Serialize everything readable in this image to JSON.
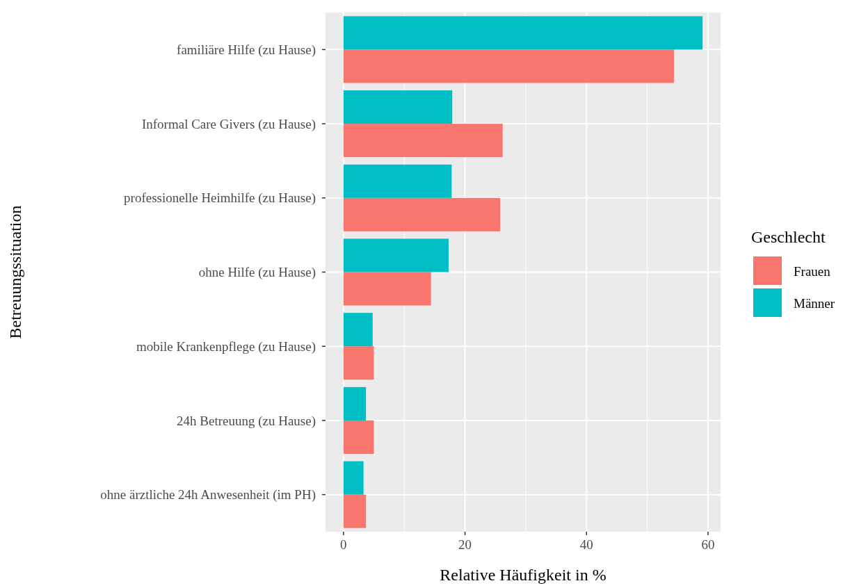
{
  "chart_data": {
    "type": "bar",
    "orientation": "horizontal",
    "xlabel": "Relative Häufigkeit in %",
    "ylabel": "Betreuungssituation",
    "legend_title": "Geschlecht",
    "legend": "right",
    "grid": true,
    "categories": [
      "familiäre Hilfe (zu Hause)",
      "Informal Care Givers (zu Hause)",
      "professionelle Heimhilfe (zu Hause)",
      "ohne Hilfe (zu Hause)",
      "mobile Krankenpflege (zu Hause)",
      "24h Betreuung (zu Hause)",
      "ohne ärztliche 24h Anwesenheit (im PH)"
    ],
    "series": [
      {
        "name": "Frauen",
        "color": "#f8766d",
        "values": [
          54.4,
          26.2,
          25.8,
          14.4,
          5.0,
          5.0,
          3.7
        ]
      },
      {
        "name": "Männer",
        "color": "#00bfc4",
        "values": [
          59.1,
          17.9,
          17.8,
          17.3,
          4.8,
          3.7,
          3.3
        ]
      }
    ],
    "xlim": [
      -2.96,
      62.06
    ],
    "xticks": [
      0,
      20,
      40,
      60
    ]
  }
}
